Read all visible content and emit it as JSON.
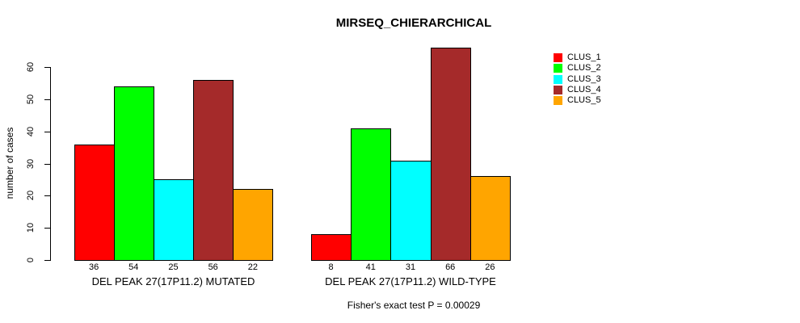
{
  "chart_data": {
    "type": "bar",
    "title": "MIRSEQ_CHIERARCHICAL",
    "ylabel": "number of cases",
    "xlabel": "",
    "ylim": [
      0,
      60
    ],
    "yticks": [
      0,
      10,
      20,
      30,
      40,
      50,
      60
    ],
    "grid": false,
    "legend_position": "right-outside",
    "categories": [
      "DEL PEAK 27(17P11.2) MUTATED",
      "DEL PEAK 27(17P11.2) WILD-TYPE"
    ],
    "series": [
      {
        "name": "CLUS_1",
        "color": "#FF0000",
        "values": [
          36,
          8
        ]
      },
      {
        "name": "CLUS_2",
        "color": "#00FF00",
        "values": [
          54,
          41
        ]
      },
      {
        "name": "CLUS_3",
        "color": "#00FFFF",
        "values": [
          25,
          31
        ]
      },
      {
        "name": "CLUS_4",
        "color": "#A52A2A",
        "values": [
          56,
          66
        ]
      },
      {
        "name": "CLUS_5",
        "color": "#FFA500",
        "values": [
          22,
          26
        ]
      }
    ],
    "bar_value_labels_shown": true,
    "annotation": "Fisher's exact test P = 0.00029"
  },
  "colors": {
    "axis": "#000000",
    "text": "#000000",
    "background": "#FFFFFF"
  }
}
